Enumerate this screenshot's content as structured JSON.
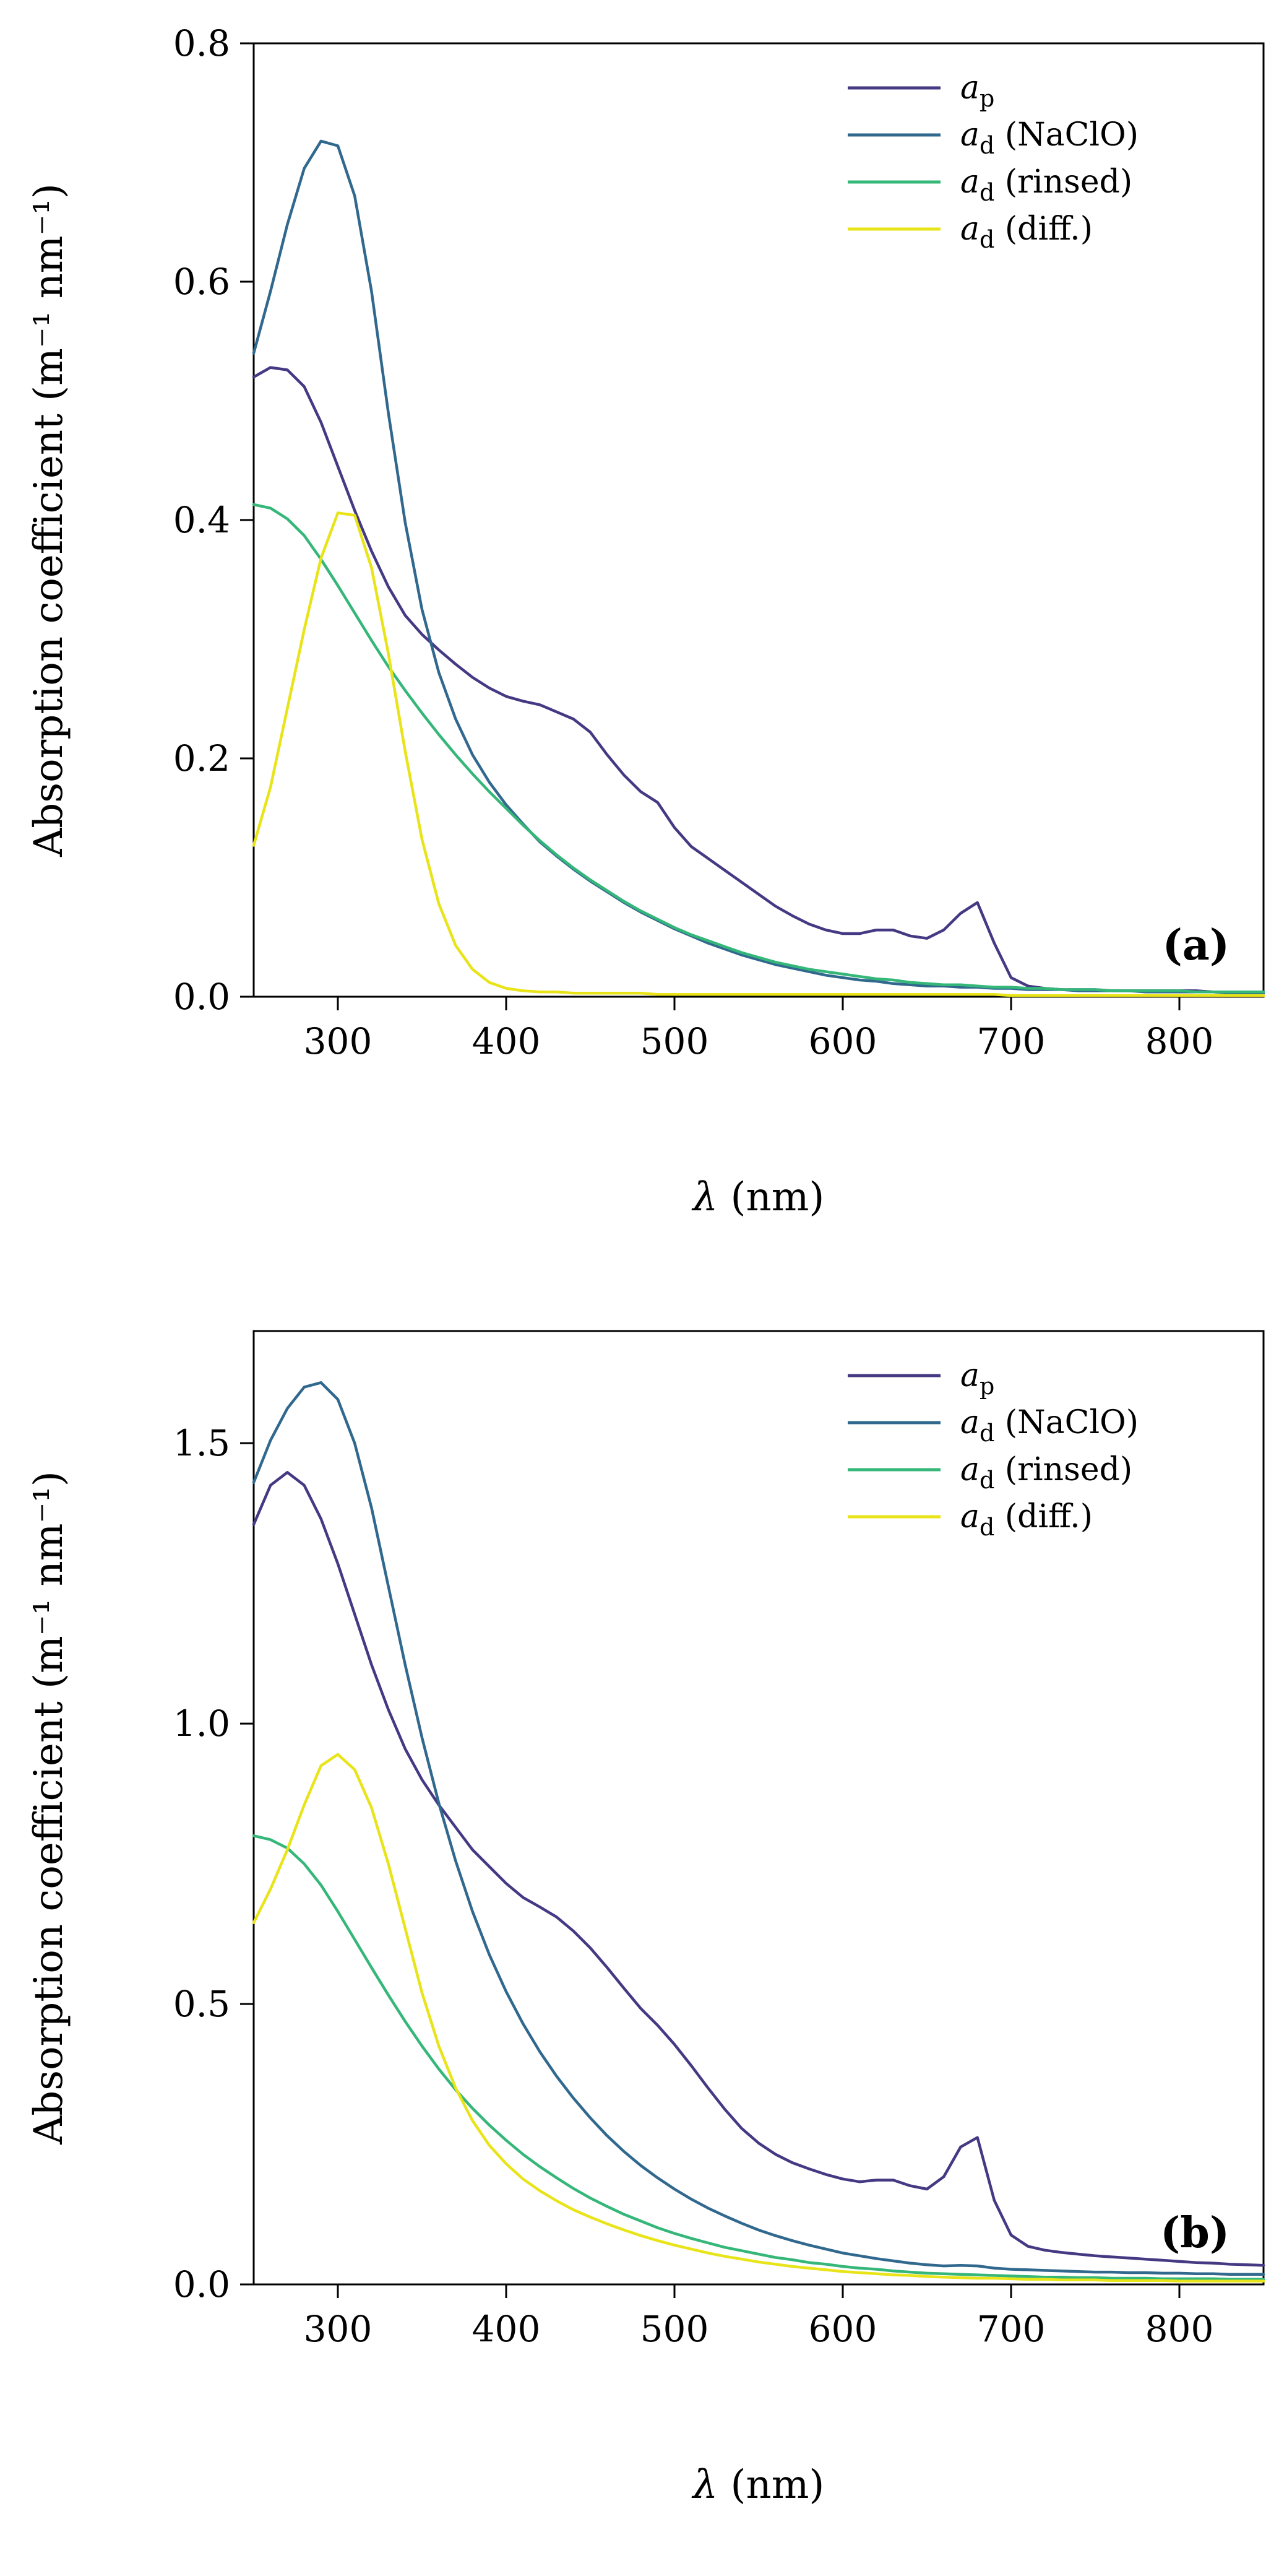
{
  "page": {
    "background": "#ffffff",
    "frame_color": "#000000"
  },
  "chart_data": [
    {
      "id": "panel-a",
      "type": "line",
      "panel_label": "(a)",
      "xlabel_main": "λ",
      "xlabel_rest": " (nm)",
      "ylabel": "Absorption coefficient (m⁻¹ nm⁻¹)",
      "xlim": [
        250,
        850
      ],
      "ylim": [
        0,
        0.8
      ],
      "xticks": [
        300,
        400,
        500,
        600,
        700,
        800
      ],
      "xtick_labels": [
        "300",
        "400",
        "500",
        "600",
        "700",
        "800"
      ],
      "yticks": [
        0.0,
        0.2,
        0.4,
        0.6,
        0.8
      ],
      "ytick_labels": [
        "0.0",
        "0.2",
        "0.4",
        "0.6",
        "0.8"
      ],
      "grid": false,
      "legend_position": "upper right",
      "x": [
        250,
        260,
        270,
        280,
        290,
        300,
        310,
        320,
        330,
        340,
        350,
        360,
        370,
        380,
        390,
        400,
        410,
        420,
        430,
        440,
        450,
        460,
        470,
        480,
        490,
        500,
        510,
        520,
        530,
        540,
        550,
        560,
        570,
        580,
        590,
        600,
        610,
        620,
        630,
        640,
        650,
        660,
        670,
        680,
        690,
        700,
        710,
        720,
        730,
        740,
        750,
        760,
        770,
        780,
        790,
        800,
        810,
        820,
        830,
        840,
        850
      ],
      "series": [
        {
          "name": "a_p",
          "label": {
            "main": "a",
            "sub": "p",
            "rest": ""
          },
          "color": "#443983",
          "values": [
            0.52,
            0.528,
            0.526,
            0.512,
            0.482,
            0.445,
            0.408,
            0.374,
            0.344,
            0.32,
            0.304,
            0.291,
            0.279,
            0.268,
            0.259,
            0.252,
            0.248,
            0.245,
            0.239,
            0.233,
            0.222,
            0.203,
            0.186,
            0.172,
            0.163,
            0.142,
            0.126,
            0.116,
            0.106,
            0.096,
            0.086,
            0.076,
            0.068,
            0.061,
            0.056,
            0.053,
            0.053,
            0.056,
            0.056,
            0.051,
            0.049,
            0.056,
            0.07,
            0.079,
            0.045,
            0.016,
            0.009,
            0.007,
            0.006,
            0.006,
            0.006,
            0.005,
            0.005,
            0.005,
            0.005,
            0.005,
            0.005,
            0.004,
            0.004,
            0.004,
            0.004
          ]
        },
        {
          "name": "a_d (NaClO)",
          "label": {
            "main": "a",
            "sub": "d",
            "rest": " (NaClO)"
          },
          "color": "#31688e",
          "values": [
            0.54,
            0.592,
            0.648,
            0.695,
            0.718,
            0.714,
            0.672,
            0.592,
            0.49,
            0.398,
            0.325,
            0.272,
            0.233,
            0.203,
            0.18,
            0.161,
            0.145,
            0.13,
            0.118,
            0.107,
            0.097,
            0.088,
            0.079,
            0.071,
            0.064,
            0.057,
            0.051,
            0.045,
            0.04,
            0.035,
            0.031,
            0.027,
            0.024,
            0.021,
            0.018,
            0.016,
            0.014,
            0.013,
            0.011,
            0.01,
            0.009,
            0.009,
            0.008,
            0.008,
            0.007,
            0.007,
            0.006,
            0.006,
            0.006,
            0.005,
            0.005,
            0.005,
            0.005,
            0.004,
            0.004,
            0.004,
            0.004,
            0.004,
            0.003,
            0.003,
            0.003
          ]
        },
        {
          "name": "a_d (rinsed)",
          "label": {
            "main": "a",
            "sub": "d",
            "rest": " (rinsed)"
          },
          "color": "#35b779",
          "values": [
            0.413,
            0.41,
            0.401,
            0.387,
            0.367,
            0.345,
            0.322,
            0.299,
            0.277,
            0.257,
            0.238,
            0.22,
            0.203,
            0.187,
            0.172,
            0.158,
            0.144,
            0.131,
            0.119,
            0.108,
            0.098,
            0.089,
            0.08,
            0.072,
            0.065,
            0.058,
            0.052,
            0.047,
            0.042,
            0.037,
            0.033,
            0.029,
            0.026,
            0.023,
            0.021,
            0.019,
            0.017,
            0.015,
            0.014,
            0.012,
            0.011,
            0.01,
            0.01,
            0.009,
            0.008,
            0.008,
            0.007,
            0.007,
            0.006,
            0.006,
            0.006,
            0.005,
            0.005,
            0.005,
            0.005,
            0.005,
            0.004,
            0.004,
            0.004,
            0.004,
            0.004
          ]
        },
        {
          "name": "a_d (diff.)",
          "label": {
            "main": "a",
            "sub": "d",
            "rest": " (diff.)"
          },
          "color": "#e8e419",
          "values": [
            0.127,
            0.176,
            0.242,
            0.308,
            0.368,
            0.406,
            0.404,
            0.36,
            0.288,
            0.206,
            0.132,
            0.078,
            0.043,
            0.023,
            0.012,
            0.007,
            0.005,
            0.004,
            0.004,
            0.003,
            0.003,
            0.003,
            0.003,
            0.003,
            0.002,
            0.002,
            0.002,
            0.002,
            0.002,
            0.002,
            0.002,
            0.002,
            0.002,
            0.002,
            0.002,
            0.002,
            0.002,
            0.002,
            0.002,
            0.002,
            0.002,
            0.002,
            0.002,
            0.002,
            0.002,
            0.001,
            0.001,
            0.001,
            0.001,
            0.001,
            0.001,
            0.001,
            0.001,
            0.001,
            0.001,
            0.001,
            0.001,
            0.001,
            0.001,
            0.001,
            0.001
          ]
        }
      ]
    },
    {
      "id": "panel-b",
      "type": "line",
      "panel_label": "(b)",
      "xlabel_main": "λ",
      "xlabel_rest": " (nm)",
      "ylabel": "Absorption coefficient (m⁻¹ nm⁻¹)",
      "xlim": [
        250,
        850
      ],
      "ylim": [
        0,
        1.7
      ],
      "xticks": [
        300,
        400,
        500,
        600,
        700,
        800
      ],
      "xtick_labels": [
        "300",
        "400",
        "500",
        "600",
        "700",
        "800"
      ],
      "yticks": [
        0.0,
        0.5,
        1.0,
        1.5
      ],
      "ytick_labels": [
        "0.0",
        "0.5",
        "1.0",
        "1.5"
      ],
      "grid": false,
      "legend_position": "upper right",
      "x": [
        250,
        260,
        270,
        280,
        290,
        300,
        310,
        320,
        330,
        340,
        350,
        360,
        370,
        380,
        390,
        400,
        410,
        420,
        430,
        440,
        450,
        460,
        470,
        480,
        490,
        500,
        510,
        520,
        530,
        540,
        550,
        560,
        570,
        580,
        590,
        600,
        610,
        620,
        630,
        640,
        650,
        660,
        670,
        680,
        690,
        700,
        710,
        720,
        730,
        740,
        750,
        760,
        770,
        780,
        790,
        800,
        810,
        820,
        830,
        840,
        850
      ],
      "series": [
        {
          "name": "a_p",
          "label": {
            "main": "a",
            "sub": "p",
            "rest": ""
          },
          "color": "#443983",
          "values": [
            1.355,
            1.425,
            1.448,
            1.425,
            1.365,
            1.285,
            1.195,
            1.105,
            1.025,
            0.955,
            0.9,
            0.855,
            0.815,
            0.775,
            0.745,
            0.715,
            0.69,
            0.673,
            0.655,
            0.63,
            0.6,
            0.565,
            0.528,
            0.492,
            0.462,
            0.428,
            0.39,
            0.35,
            0.312,
            0.278,
            0.252,
            0.232,
            0.217,
            0.206,
            0.196,
            0.188,
            0.183,
            0.186,
            0.186,
            0.176,
            0.17,
            0.192,
            0.245,
            0.262,
            0.15,
            0.088,
            0.068,
            0.061,
            0.057,
            0.054,
            0.051,
            0.049,
            0.047,
            0.045,
            0.043,
            0.041,
            0.039,
            0.038,
            0.036,
            0.035,
            0.034
          ]
        },
        {
          "name": "a_d (NaClO)",
          "label": {
            "main": "a",
            "sub": "d",
            "rest": " (NaClO)"
          },
          "color": "#31688e",
          "values": [
            1.43,
            1.505,
            1.562,
            1.6,
            1.608,
            1.578,
            1.5,
            1.385,
            1.245,
            1.105,
            0.975,
            0.858,
            0.755,
            0.665,
            0.588,
            0.522,
            0.465,
            0.415,
            0.371,
            0.332,
            0.297,
            0.265,
            0.237,
            0.212,
            0.19,
            0.17,
            0.152,
            0.136,
            0.122,
            0.109,
            0.097,
            0.087,
            0.078,
            0.07,
            0.063,
            0.056,
            0.051,
            0.046,
            0.042,
            0.038,
            0.035,
            0.033,
            0.034,
            0.033,
            0.029,
            0.027,
            0.026,
            0.025,
            0.024,
            0.023,
            0.022,
            0.022,
            0.021,
            0.021,
            0.02,
            0.02,
            0.019,
            0.019,
            0.018,
            0.018,
            0.018
          ]
        },
        {
          "name": "a_d (rinsed)",
          "label": {
            "main": "a",
            "sub": "d",
            "rest": " (rinsed)"
          },
          "color": "#35b779",
          "values": [
            0.8,
            0.793,
            0.778,
            0.75,
            0.712,
            0.665,
            0.615,
            0.565,
            0.516,
            0.469,
            0.425,
            0.384,
            0.347,
            0.314,
            0.284,
            0.257,
            0.232,
            0.21,
            0.19,
            0.171,
            0.154,
            0.139,
            0.125,
            0.113,
            0.101,
            0.091,
            0.082,
            0.074,
            0.066,
            0.06,
            0.054,
            0.048,
            0.044,
            0.039,
            0.036,
            0.032,
            0.029,
            0.027,
            0.024,
            0.022,
            0.02,
            0.019,
            0.018,
            0.017,
            0.016,
            0.015,
            0.014,
            0.013,
            0.013,
            0.012,
            0.012,
            0.011,
            0.011,
            0.011,
            0.01,
            0.01,
            0.01,
            0.01,
            0.009,
            0.009,
            0.009
          ]
        },
        {
          "name": "a_d (diff.)",
          "label": {
            "main": "a",
            "sub": "d",
            "rest": " (diff.)"
          },
          "color": "#e8e419",
          "values": [
            0.645,
            0.705,
            0.775,
            0.855,
            0.925,
            0.945,
            0.918,
            0.85,
            0.75,
            0.635,
            0.52,
            0.425,
            0.35,
            0.292,
            0.248,
            0.215,
            0.188,
            0.167,
            0.149,
            0.133,
            0.12,
            0.108,
            0.097,
            0.087,
            0.078,
            0.07,
            0.063,
            0.056,
            0.05,
            0.045,
            0.04,
            0.036,
            0.032,
            0.029,
            0.026,
            0.023,
            0.021,
            0.019,
            0.017,
            0.016,
            0.014,
            0.013,
            0.012,
            0.011,
            0.011,
            0.01,
            0.009,
            0.009,
            0.008,
            0.008,
            0.008,
            0.007,
            0.007,
            0.007,
            0.007,
            0.006,
            0.006,
            0.006,
            0.006,
            0.006,
            0.006
          ]
        }
      ]
    }
  ]
}
